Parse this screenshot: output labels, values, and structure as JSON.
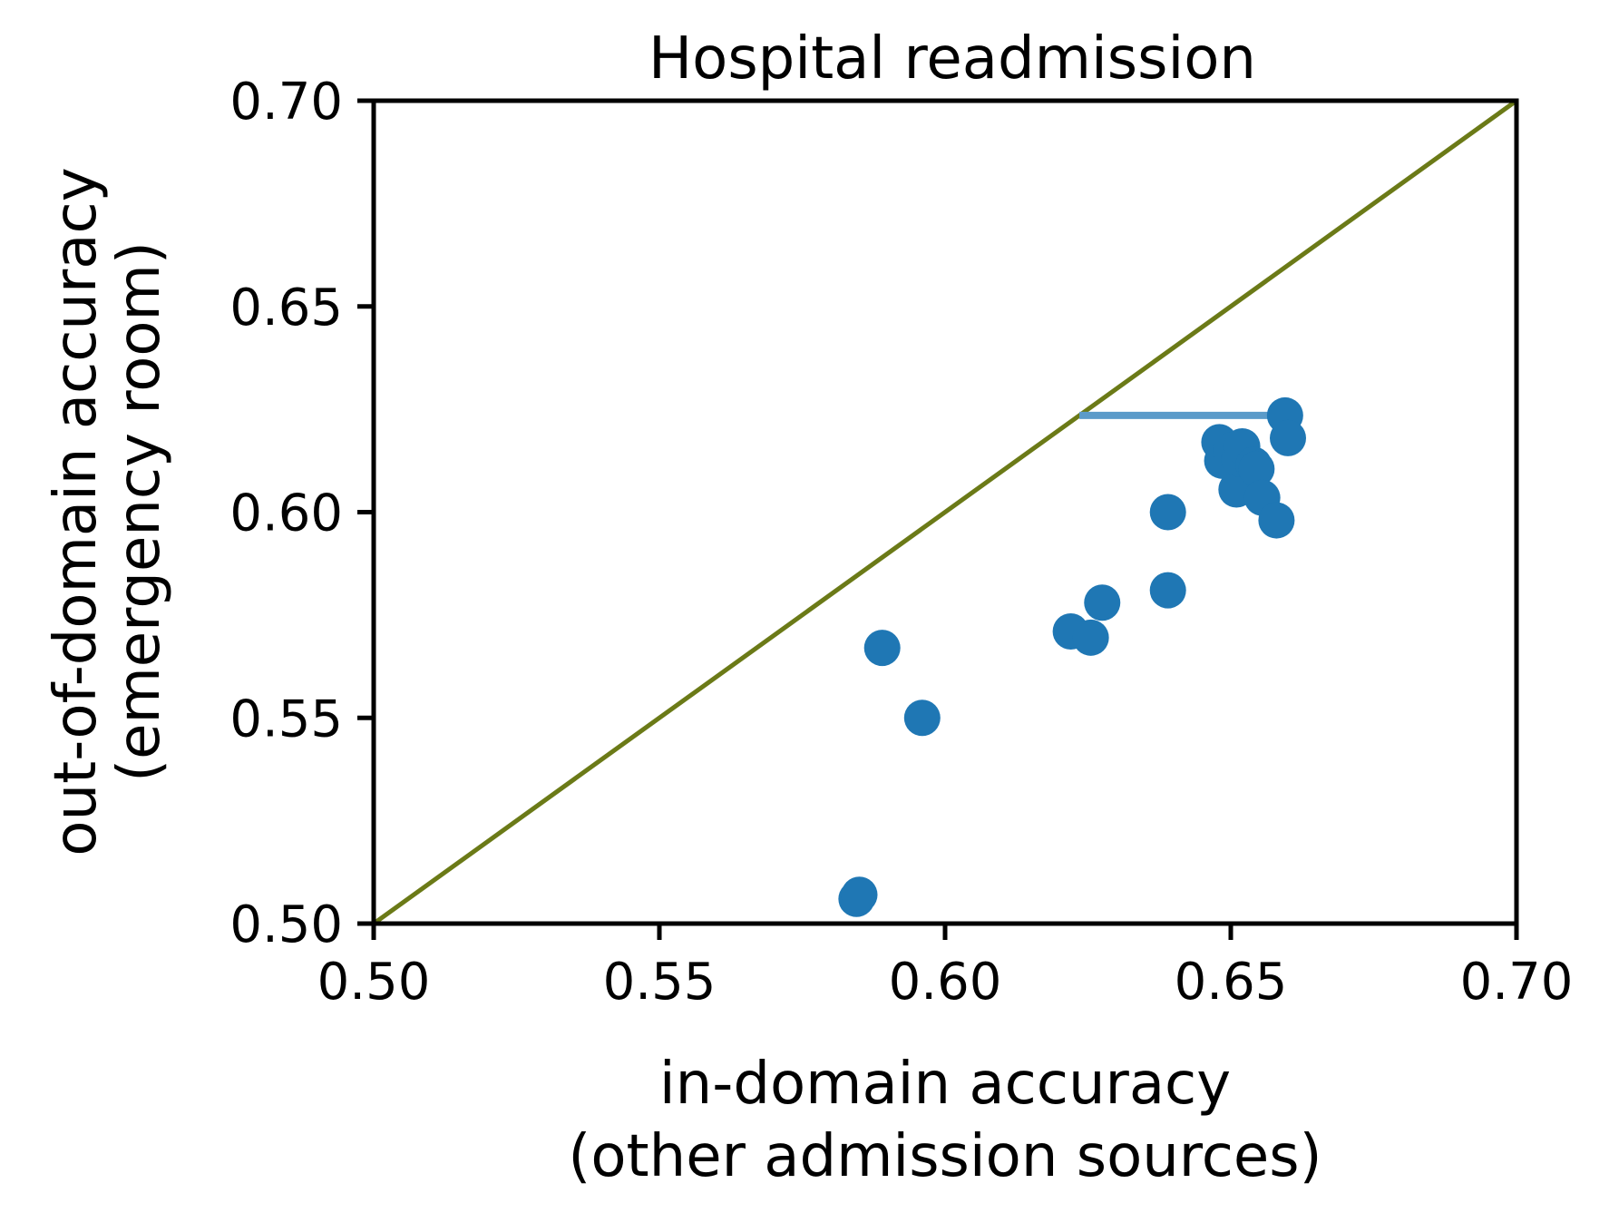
{
  "chart_data": {
    "type": "scatter",
    "title": "Hospital readmission",
    "xlabel": [
      "in-domain accuracy",
      "(other admission sources)"
    ],
    "ylabel": [
      "out-of-domain accuracy",
      "(emergency room)"
    ],
    "xlim": [
      0.5,
      0.7
    ],
    "ylim": [
      0.5,
      0.7
    ],
    "xticks": [
      "0.50",
      "0.55",
      "0.60",
      "0.65",
      "0.70"
    ],
    "yticks": [
      "0.50",
      "0.55",
      "0.60",
      "0.65",
      "0.70"
    ],
    "grid": false,
    "colors": {
      "points": "#1f77b4",
      "diagonal": "#6b7a17",
      "gap_line": "#5b9bc9"
    },
    "reference_line": {
      "from": [
        0.5,
        0.5
      ],
      "to": [
        0.7,
        0.7
      ]
    },
    "gap_segment": {
      "x": [
        0.6235,
        0.6595
      ],
      "y": 0.6235
    },
    "series": [
      {
        "x": [
          0.5845,
          0.585,
          0.589,
          0.596,
          0.622,
          0.6255,
          0.6275,
          0.639,
          0.639,
          0.648,
          0.6485,
          0.65,
          0.651,
          0.6515,
          0.652,
          0.654,
          0.6545,
          0.6555,
          0.658,
          0.6595,
          0.66
        ],
        "y": [
          0.506,
          0.507,
          0.567,
          0.55,
          0.571,
          0.5695,
          0.578,
          0.581,
          0.6,
          0.617,
          0.6125,
          0.615,
          0.6055,
          0.613,
          0.616,
          0.6115,
          0.6105,
          0.6035,
          0.598,
          0.6235,
          0.618
        ]
      }
    ]
  }
}
